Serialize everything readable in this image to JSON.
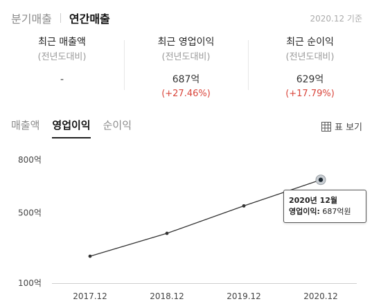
{
  "period_tabs": [
    {
      "label": "분기매출",
      "active": false
    },
    {
      "label": "연간매출",
      "active": true
    }
  ],
  "as_of": "2020.12 기준",
  "summary": [
    {
      "label": "최근 매출액",
      "sub": "(전년도대비)",
      "value": "-",
      "change": ""
    },
    {
      "label": "최근 영업이익",
      "sub": "(전년도대비)",
      "value": "687억",
      "change": "(+27.46%)"
    },
    {
      "label": "최근 순이익",
      "sub": "(전년도대비)",
      "value": "629억",
      "change": "(+17.79%)"
    }
  ],
  "metric_tabs": [
    {
      "label": "매출액",
      "active": false
    },
    {
      "label": "영업이익",
      "active": true
    },
    {
      "label": "순이익",
      "active": false
    }
  ],
  "table_toggle": {
    "label": "표 보기",
    "icon": "table-icon"
  },
  "tooltip": {
    "title": "2020년 12월",
    "key": "영업이익:",
    "value": "687억원"
  },
  "colors": {
    "line": "#333333",
    "change_up": "#d9453b",
    "highlight": "#c8cdd2"
  },
  "chart_data": {
    "type": "line",
    "categories": [
      "2017.12",
      "2018.12",
      "2019.12",
      "2020.12"
    ],
    "y_ticks": [
      100,
      500,
      800
    ],
    "y_tick_labels": [
      "100억",
      "500억",
      "800억"
    ],
    "ylim": [
      100,
      800
    ],
    "grid": false,
    "series": [
      {
        "values": [
          253,
          383,
          539,
          687
        ]
      }
    ],
    "highlight_index": 3
  }
}
